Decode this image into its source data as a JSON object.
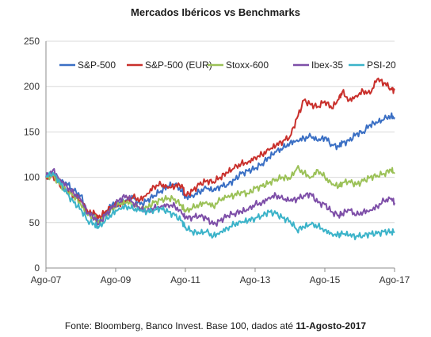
{
  "chart_data": {
    "type": "line",
    "title": "Mercados Ibéricos vs Benchmarks",
    "xlabel": "",
    "ylabel": "",
    "ylim": [
      0,
      250
    ],
    "yticks": [
      "0",
      "50",
      "100",
      "150",
      "200",
      "250"
    ],
    "xlim": [
      2007.6,
      2017.6
    ],
    "xticks": [
      {
        "label": "Ago-07",
        "x": 2007.6
      },
      {
        "label": "Ago-09",
        "x": 2009.6
      },
      {
        "label": "Ago-11",
        "x": 2011.6
      },
      {
        "label": "Ago-13",
        "x": 2013.6
      },
      {
        "label": "Ago-15",
        "x": 2015.6
      },
      {
        "label": "Ago-17",
        "x": 2017.6
      }
    ],
    "grid": "horizontal",
    "legend_position": "top",
    "series": [
      {
        "name": "S&P-500",
        "color": "#3a6fc4",
        "x": [
          2007.6,
          2007.8,
          2008.0,
          2008.2,
          2008.4,
          2008.6,
          2008.8,
          2009.0,
          2009.1,
          2009.3,
          2009.5,
          2009.7,
          2009.9,
          2010.1,
          2010.3,
          2010.5,
          2010.7,
          2010.9,
          2011.1,
          2011.3,
          2011.5,
          2011.6,
          2011.8,
          2012.0,
          2012.2,
          2012.4,
          2012.6,
          2012.8,
          2013.0,
          2013.2,
          2013.4,
          2013.6,
          2013.8,
          2014.0,
          2014.2,
          2014.4,
          2014.6,
          2014.8,
          2015.0,
          2015.2,
          2015.4,
          2015.6,
          2015.8,
          2016.0,
          2016.1,
          2016.3,
          2016.5,
          2016.7,
          2016.9,
          2017.1,
          2017.3,
          2017.5,
          2017.6
        ],
        "y": [
          100,
          105,
          95,
          93,
          85,
          80,
          62,
          58,
          50,
          60,
          70,
          72,
          75,
          78,
          70,
          74,
          80,
          85,
          90,
          92,
          85,
          78,
          80,
          84,
          88,
          85,
          90,
          92,
          97,
          104,
          107,
          110,
          115,
          122,
          128,
          132,
          138,
          141,
          143,
          145,
          140,
          144,
          136,
          134,
          138,
          140,
          148,
          150,
          158,
          160,
          164,
          168,
          166
        ]
      },
      {
        "name": "S&P-500 (EUR)",
        "color": "#c9302c",
        "x": [
          2007.6,
          2007.8,
          2008.0,
          2008.2,
          2008.4,
          2008.6,
          2008.8,
          2009.0,
          2009.1,
          2009.3,
          2009.5,
          2009.7,
          2009.9,
          2010.1,
          2010.3,
          2010.5,
          2010.7,
          2010.9,
          2011.1,
          2011.3,
          2011.5,
          2011.6,
          2011.8,
          2012.0,
          2012.2,
          2012.4,
          2012.6,
          2012.8,
          2013.0,
          2013.2,
          2013.4,
          2013.6,
          2013.8,
          2014.0,
          2014.2,
          2014.4,
          2014.6,
          2014.8,
          2015.0,
          2015.2,
          2015.4,
          2015.6,
          2015.8,
          2016.0,
          2016.1,
          2016.3,
          2016.5,
          2016.7,
          2016.9,
          2017.1,
          2017.3,
          2017.5,
          2017.6
        ],
        "y": [
          100,
          102,
          90,
          85,
          80,
          75,
          62,
          60,
          55,
          62,
          68,
          70,
          73,
          78,
          75,
          82,
          90,
          92,
          88,
          90,
          92,
          80,
          85,
          92,
          96,
          95,
          100,
          105,
          110,
          115,
          117,
          122,
          125,
          130,
          135,
          140,
          145,
          165,
          185,
          180,
          178,
          184,
          176,
          186,
          194,
          185,
          190,
          195,
          192,
          208,
          204,
          198,
          196
        ]
      },
      {
        "name": "Stoxx-600",
        "color": "#9bc157",
        "x": [
          2007.6,
          2007.8,
          2008.0,
          2008.2,
          2008.4,
          2008.6,
          2008.8,
          2009.0,
          2009.1,
          2009.3,
          2009.5,
          2009.7,
          2009.9,
          2010.1,
          2010.3,
          2010.5,
          2010.7,
          2010.9,
          2011.1,
          2011.3,
          2011.5,
          2011.6,
          2011.8,
          2012.0,
          2012.2,
          2012.4,
          2012.6,
          2012.8,
          2013.0,
          2013.2,
          2013.4,
          2013.6,
          2013.8,
          2014.0,
          2014.2,
          2014.4,
          2014.6,
          2014.8,
          2015.0,
          2015.2,
          2015.4,
          2015.6,
          2015.8,
          2016.0,
          2016.1,
          2016.3,
          2016.5,
          2016.7,
          2016.9,
          2017.1,
          2017.3,
          2017.5,
          2017.6
        ],
        "y": [
          100,
          102,
          92,
          85,
          80,
          70,
          58,
          55,
          50,
          58,
          65,
          70,
          72,
          70,
          66,
          67,
          72,
          75,
          77,
          76,
          68,
          62,
          66,
          70,
          73,
          68,
          75,
          78,
          80,
          84,
          82,
          88,
          90,
          94,
          98,
          100,
          98,
          110,
          105,
          100,
          108,
          100,
          92,
          90,
          94,
          96,
          92,
          96,
          100,
          102,
          104,
          108,
          104
        ]
      },
      {
        "name": "Ibex-35",
        "color": "#7e4fa8",
        "x": [
          2007.6,
          2007.8,
          2008.0,
          2008.2,
          2008.4,
          2008.6,
          2008.8,
          2009.0,
          2009.1,
          2009.3,
          2009.5,
          2009.7,
          2009.9,
          2010.1,
          2010.3,
          2010.5,
          2010.7,
          2010.9,
          2011.1,
          2011.3,
          2011.5,
          2011.6,
          2011.8,
          2012.0,
          2012.2,
          2012.4,
          2012.6,
          2012.8,
          2013.0,
          2013.2,
          2013.4,
          2013.6,
          2013.8,
          2014.0,
          2014.2,
          2014.4,
          2014.6,
          2014.8,
          2015.0,
          2015.2,
          2015.4,
          2015.6,
          2015.8,
          2016.0,
          2016.1,
          2016.3,
          2016.5,
          2016.7,
          2016.9,
          2017.1,
          2017.3,
          2017.5,
          2017.6
        ],
        "y": [
          100,
          108,
          98,
          90,
          82,
          75,
          60,
          56,
          48,
          58,
          66,
          75,
          80,
          72,
          65,
          62,
          66,
          68,
          70,
          68,
          60,
          55,
          56,
          58,
          55,
          48,
          52,
          58,
          60,
          62,
          64,
          70,
          72,
          78,
          80,
          76,
          74,
          76,
          80,
          82,
          72,
          70,
          62,
          58,
          60,
          64,
          58,
          62,
          64,
          68,
          74,
          76,
          72
        ]
      },
      {
        "name": "PSI-20",
        "color": "#3bb3c9",
        "x": [
          2007.6,
          2007.8,
          2008.0,
          2008.2,
          2008.4,
          2008.6,
          2008.8,
          2009.0,
          2009.1,
          2009.3,
          2009.5,
          2009.7,
          2009.9,
          2010.1,
          2010.3,
          2010.5,
          2010.7,
          2010.9,
          2011.1,
          2011.3,
          2011.5,
          2011.6,
          2011.8,
          2012.0,
          2012.2,
          2012.4,
          2012.6,
          2012.8,
          2013.0,
          2013.2,
          2013.4,
          2013.6,
          2013.8,
          2014.0,
          2014.2,
          2014.4,
          2014.6,
          2014.8,
          2015.0,
          2015.2,
          2015.4,
          2015.6,
          2015.8,
          2016.0,
          2016.1,
          2016.3,
          2016.5,
          2016.7,
          2016.9,
          2017.1,
          2017.3,
          2017.5,
          2017.6
        ],
        "y": [
          100,
          105,
          95,
          82,
          72,
          65,
          52,
          48,
          44,
          52,
          60,
          66,
          68,
          65,
          63,
          62,
          64,
          66,
          62,
          58,
          52,
          45,
          40,
          38,
          40,
          35,
          40,
          44,
          48,
          50,
          52,
          55,
          58,
          62,
          60,
          55,
          52,
          42,
          45,
          48,
          46,
          42,
          38,
          36,
          38,
          36,
          35,
          36,
          38,
          38,
          40,
          40,
          40
        ]
      }
    ]
  },
  "footer": {
    "text": "Fonte: Bloomberg, Banco Invest. Base 100, dados até ",
    "date": "11-Agosto-2017"
  }
}
